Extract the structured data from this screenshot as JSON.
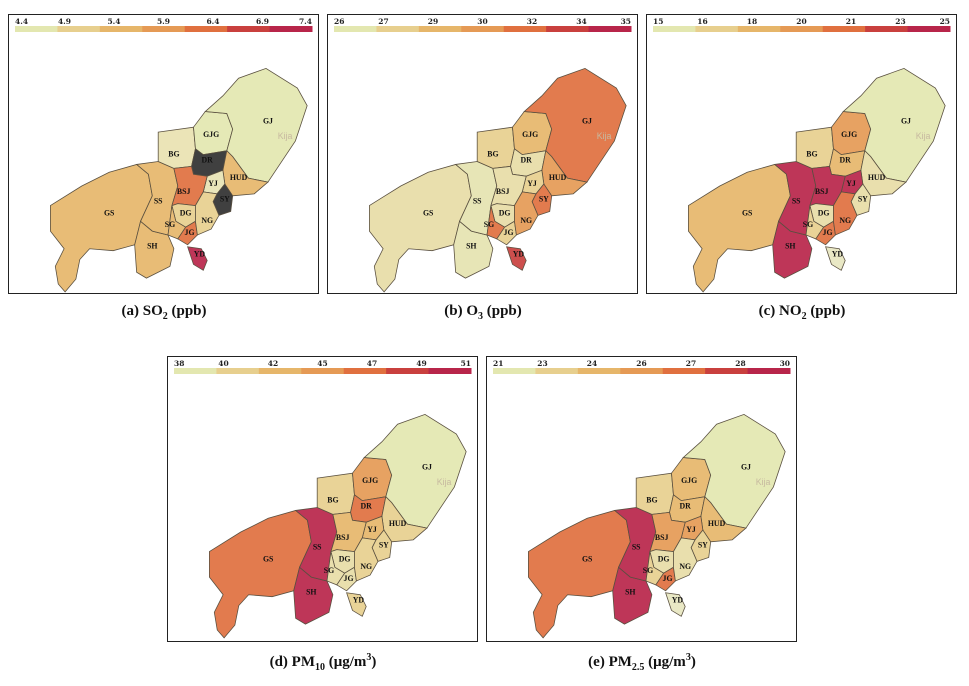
{
  "palette": [
    "#e3e7b0",
    "#e7cf8e",
    "#e6b66a",
    "#e59a55",
    "#e0703f",
    "#c9403e",
    "#b8254a"
  ],
  "panels": [
    {
      "id": "a",
      "caption_letter": "(a) SO",
      "caption_sub": "2",
      "caption_unit": " (ppb)",
      "ticks": [
        "4.4",
        "4.9",
        "5.4",
        "5.9",
        "6.4",
        "6.9",
        "7.4"
      ],
      "region_colors": {
        "GS": "#e6b66a",
        "SH": "#e6b66a",
        "SS": "#e6b66a",
        "BG": "#e9e2b1",
        "GJG": "#e3e7b0",
        "GJ": "#e3e7b0",
        "DR": "#303030",
        "YJ": "#e7e3b4",
        "SY": "#303030",
        "HUD": "#e6b66a",
        "BSJ": "#e0703f",
        "DG": "#e7cf8e",
        "SG": "#e6b66a",
        "JG": "#e0703f",
        "NG": "#e7cf8e",
        "YD": "#b8254a"
      }
    },
    {
      "id": "b",
      "caption_letter": "(b) O",
      "caption_sub": "3",
      "caption_unit": " (ppb)",
      "ticks": [
        "26",
        "27",
        "29",
        "30",
        "32",
        "34",
        "35"
      ],
      "region_colors": {
        "GS": "#e7dca6",
        "SH": "#e5e3b0",
        "SS": "#e5e3b0",
        "BG": "#e7cf8e",
        "GJG": "#e6b66a",
        "GJ": "#e0703f",
        "DR": "#e7dca6",
        "YJ": "#e7cf8e",
        "SY": "#e0703f",
        "HUD": "#e59a55",
        "BSJ": "#e7dca6",
        "DG": "#e7dca6",
        "SG": "#e0703f",
        "JG": "#e7cf8e",
        "NG": "#e59a55",
        "YD": "#c9403e"
      }
    },
    {
      "id": "c",
      "caption_letter": "(c) NO",
      "caption_sub": "2",
      "caption_unit": " (ppb)",
      "ticks": [
        "15",
        "16",
        "18",
        "20",
        "21",
        "23",
        "25"
      ],
      "region_colors": {
        "GS": "#e6b66a",
        "SH": "#b8254a",
        "SS": "#b8254a",
        "BG": "#e7cf8e",
        "GJG": "#e59a55",
        "GJ": "#e3e7b0",
        "DR": "#e6b66a",
        "YJ": "#b8254a",
        "SY": "#e7dca6",
        "HUD": "#e7dca6",
        "BSJ": "#b8254a",
        "DG": "#e7dca6",
        "SG": "#e7cf8e",
        "JG": "#e0703f",
        "NG": "#e0703f",
        "YD": "#e7e6c0"
      }
    },
    {
      "id": "d",
      "caption_letter": "(d) PM",
      "caption_sub": "10",
      "caption_unit": " (μg/m",
      "caption_sup": "3",
      "caption_end": ")",
      "ticks": [
        "38",
        "40",
        "42",
        "45",
        "47",
        "49",
        "51"
      ],
      "region_colors": {
        "GS": "#e0703f",
        "SH": "#b8254a",
        "SS": "#b8254a",
        "BG": "#e7cf8e",
        "GJG": "#e59a55",
        "GJ": "#e3e7b0",
        "DR": "#e0703f",
        "YJ": "#e6b66a",
        "SY": "#e7cf8e",
        "HUD": "#e7cf8e",
        "BSJ": "#e6b66a",
        "DG": "#e7dca6",
        "SG": "#e7dca6",
        "JG": "#e7dca6",
        "NG": "#e7cf8e",
        "YD": "#e7cf8e"
      }
    },
    {
      "id": "e",
      "caption_letter": "(e) PM",
      "caption_sub": "2.5",
      "caption_unit": " (μg/m",
      "caption_sup": "3",
      "caption_end": ")",
      "ticks": [
        "21",
        "23",
        "24",
        "26",
        "27",
        "28",
        "30"
      ],
      "region_colors": {
        "GS": "#e0703f",
        "SH": "#b8254a",
        "SS": "#b8254a",
        "BG": "#e7cf8e",
        "GJG": "#e6b66a",
        "GJ": "#e3e7b0",
        "DR": "#e6b66a",
        "YJ": "#e59a55",
        "SY": "#e7cf8e",
        "HUD": "#e6b66a",
        "BSJ": "#e59a55",
        "DG": "#e7dca6",
        "SG": "#e7cf8e",
        "JG": "#e0703f",
        "NG": "#e7dca6",
        "YD": "#e7e6c0"
      }
    }
  ],
  "basemap_text": "Kija"
}
